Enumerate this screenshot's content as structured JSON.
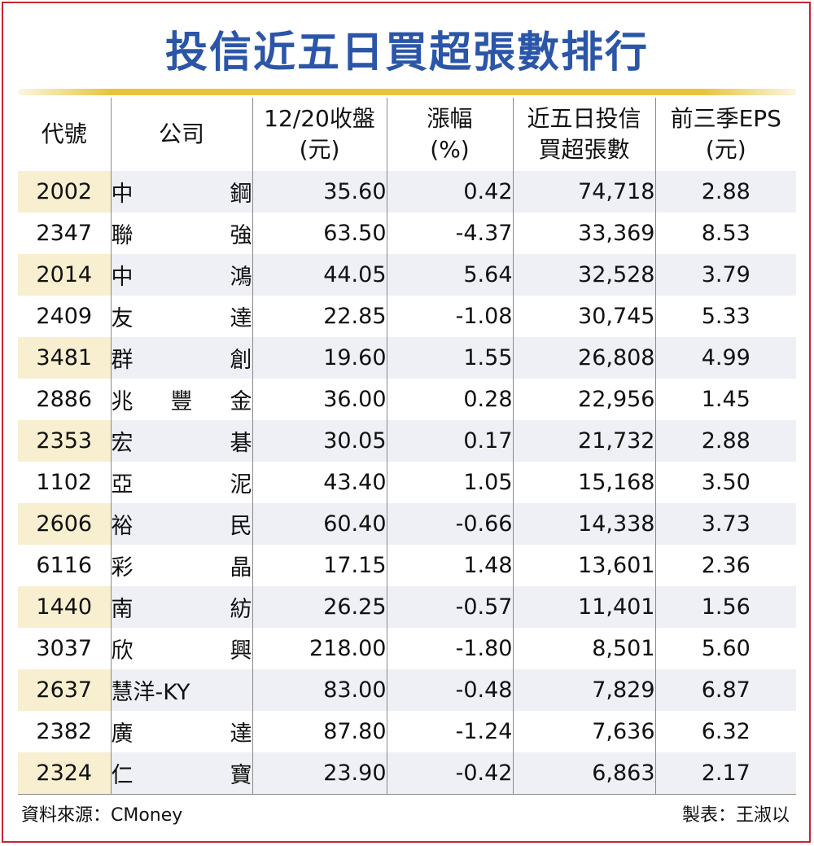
{
  "title": "投信近五日買超張數排行",
  "headers": {
    "code": "代號",
    "company": "公司",
    "close_line1": "12/20收盤",
    "close_line2": "(元)",
    "change_line1": "漲幅",
    "change_line2": "(%)",
    "buy_line1": "近五日投信",
    "buy_line2": "買超張數",
    "eps_line1": "前三季EPS",
    "eps_line2": "(元)"
  },
  "rows": [
    {
      "code": "2002",
      "name": [
        "中",
        "鋼"
      ],
      "close": "35.60",
      "change": "0.42",
      "buy": "74,718",
      "eps": "2.88"
    },
    {
      "code": "2347",
      "name": [
        "聯",
        "強"
      ],
      "close": "63.50",
      "change": "-4.37",
      "buy": "33,369",
      "eps": "8.53"
    },
    {
      "code": "2014",
      "name": [
        "中",
        "鴻"
      ],
      "close": "44.05",
      "change": "5.64",
      "buy": "32,528",
      "eps": "3.79"
    },
    {
      "code": "2409",
      "name": [
        "友",
        "達"
      ],
      "close": "22.85",
      "change": "-1.08",
      "buy": "30,745",
      "eps": "5.33"
    },
    {
      "code": "3481",
      "name": [
        "群",
        "創"
      ],
      "close": "19.60",
      "change": "1.55",
      "buy": "26,808",
      "eps": "4.99"
    },
    {
      "code": "2886",
      "name": [
        "兆",
        "豐",
        "金"
      ],
      "close": "36.00",
      "change": "0.28",
      "buy": "22,956",
      "eps": "1.45"
    },
    {
      "code": "2353",
      "name": [
        "宏",
        "碁"
      ],
      "close": "30.05",
      "change": "0.17",
      "buy": "21,732",
      "eps": "2.88"
    },
    {
      "code": "1102",
      "name": [
        "亞",
        "泥"
      ],
      "close": "43.40",
      "change": "1.05",
      "buy": "15,168",
      "eps": "3.50"
    },
    {
      "code": "2606",
      "name": [
        "裕",
        "民"
      ],
      "close": "60.40",
      "change": "-0.66",
      "buy": "14,338",
      "eps": "3.73"
    },
    {
      "code": "6116",
      "name": [
        "彩",
        "晶"
      ],
      "close": "17.15",
      "change": "1.48",
      "buy": "13,601",
      "eps": "2.36"
    },
    {
      "code": "1440",
      "name": [
        "南",
        "紡"
      ],
      "close": "26.25",
      "change": "-0.57",
      "buy": "11,401",
      "eps": "1.56"
    },
    {
      "code": "3037",
      "name": [
        "欣",
        "興"
      ],
      "close": "218.00",
      "change": "-1.80",
      "buy": "8,501",
      "eps": "5.60"
    },
    {
      "code": "2637",
      "name": [
        "慧洋-KY"
      ],
      "close": "83.00",
      "change": "-0.48",
      "buy": "7,829",
      "eps": "6.87"
    },
    {
      "code": "2382",
      "name": [
        "廣",
        "達"
      ],
      "close": "87.80",
      "change": "-1.24",
      "buy": "7,636",
      "eps": "6.32"
    },
    {
      "code": "2324",
      "name": [
        "仁",
        "寶"
      ],
      "close": "23.90",
      "change": "-0.42",
      "buy": "6,863",
      "eps": "2.17"
    }
  ],
  "footer": {
    "source": "資料來源：CMoney",
    "maker": "製表：王淑以"
  },
  "colors": {
    "title": "#2b56a8",
    "frame": "#c9242f",
    "rule": "#e8c43c",
    "band_row": "#eef0f6",
    "band_code": "#f7efcf"
  }
}
